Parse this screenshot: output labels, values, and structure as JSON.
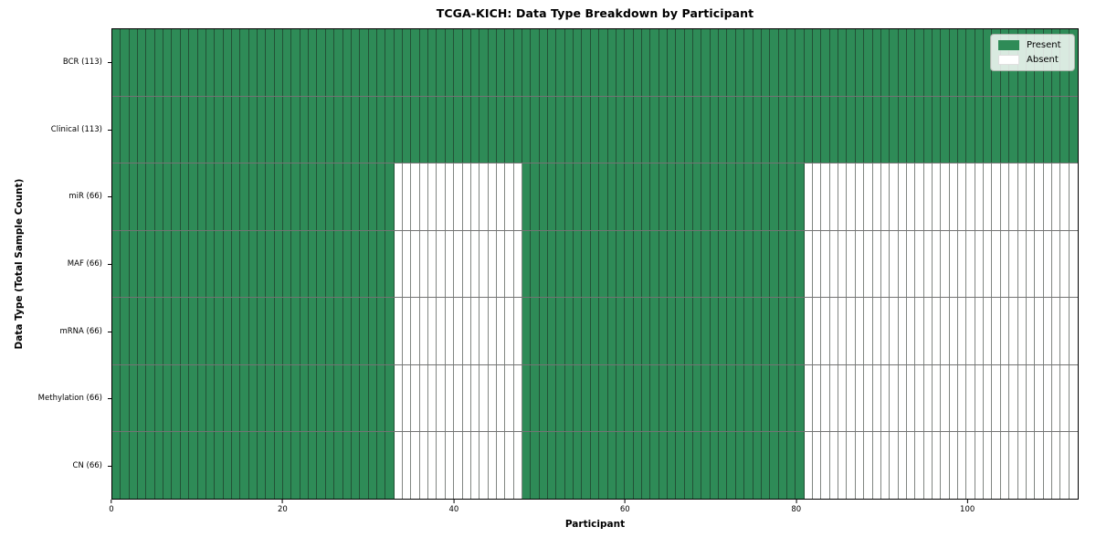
{
  "chart_data": {
    "type": "heatmap",
    "title": "TCGA-KICH: Data Type Breakdown by Participant",
    "xlabel": "Participant",
    "ylabel": "Data Type (Total Sample Count)",
    "x_range": [
      0,
      113
    ],
    "x_ticks": [
      0,
      20,
      40,
      60,
      80,
      100
    ],
    "n_participants": 113,
    "rows": [
      {
        "label": "BCR (113)",
        "data_type": "BCR",
        "present_count": 113,
        "present_ranges": [
          [
            0,
            113
          ]
        ]
      },
      {
        "label": "Clinical (113)",
        "data_type": "Clinical",
        "present_count": 113,
        "present_ranges": [
          [
            0,
            113
          ]
        ]
      },
      {
        "label": "miR (66)",
        "data_type": "miR",
        "present_count": 66,
        "present_ranges": [
          [
            0,
            33
          ],
          [
            48,
            81
          ]
        ]
      },
      {
        "label": "MAF (66)",
        "data_type": "MAF",
        "present_count": 66,
        "present_ranges": [
          [
            0,
            33
          ],
          [
            48,
            81
          ]
        ]
      },
      {
        "label": "mRNA (66)",
        "data_type": "mRNA",
        "present_count": 66,
        "present_ranges": [
          [
            0,
            33
          ],
          [
            48,
            81
          ]
        ]
      },
      {
        "label": "Methylation (66)",
        "data_type": "Methylation",
        "present_count": 66,
        "present_ranges": [
          [
            0,
            33
          ],
          [
            48,
            81
          ]
        ]
      },
      {
        "label": "CN (66)",
        "data_type": "CN",
        "present_count": 66,
        "present_ranges": [
          [
            0,
            33
          ],
          [
            48,
            81
          ]
        ]
      }
    ],
    "legend": {
      "position": "upper right",
      "items": [
        {
          "label": "Present",
          "color": "#2e8b57"
        },
        {
          "label": "Absent",
          "color": "#ffffff"
        }
      ]
    },
    "colors": {
      "present": "#2e8b57",
      "absent": "#ffffff",
      "cell_edge": "rgba(25,35,28,0.55)",
      "plot_border": "#000000"
    },
    "grid": false
  }
}
